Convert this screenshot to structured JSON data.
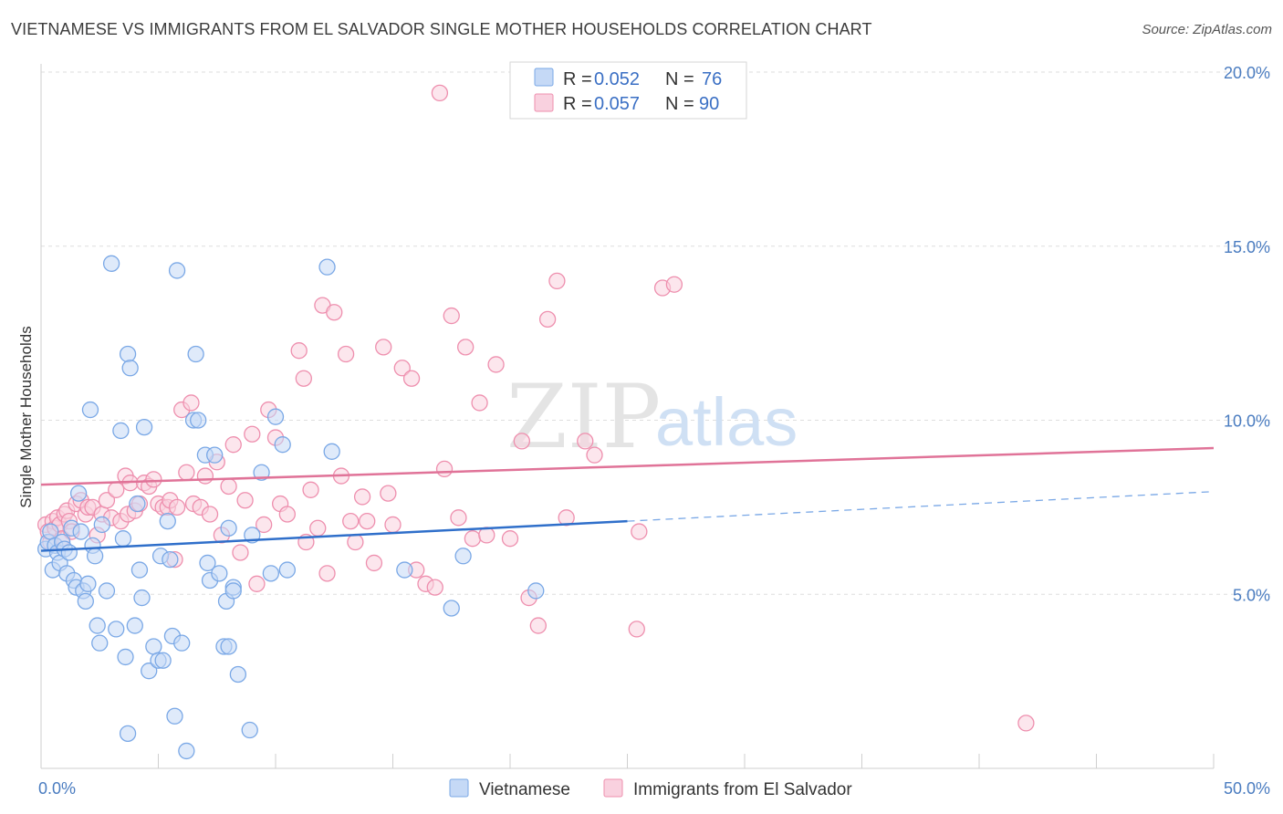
{
  "header": {
    "title": "VIETNAMESE VS IMMIGRANTS FROM EL SALVADOR SINGLE MOTHER HOUSEHOLDS CORRELATION CHART",
    "source": "Source: ZipAtlas.com"
  },
  "watermark": {
    "zip": "ZIP",
    "atlas": "atlas"
  },
  "chart_data": {
    "type": "scatter",
    "title": "VIETNAMESE VS IMMIGRANTS FROM EL SALVADOR SINGLE MOTHER HOUSEHOLDS CORRELATION CHART",
    "xlabel": "",
    "ylabel": "Single Mother Households",
    "xlim": [
      0,
      50
    ],
    "ylim": [
      0,
      20.5
    ],
    "x_tick_labels": [
      "0.0%",
      "50.0%"
    ],
    "y_ticks": [
      5,
      10,
      15,
      20
    ],
    "y_tick_labels": [
      "5.0%",
      "10.0%",
      "15.0%",
      "20.0%"
    ],
    "grid": true,
    "legend": [
      {
        "name": "Vietnamese",
        "r_label": "R =",
        "r": "0.052",
        "n_label": "N =",
        "n": "76",
        "color": "#7aa8e6",
        "fill": "#c5d9f6"
      },
      {
        "name": "Immigrants from El Salvador",
        "r_label": "R =",
        "r": "0.057",
        "n_label": "N =",
        "n": "90",
        "color": "#ee8fae",
        "fill": "#f9d1df"
      }
    ],
    "series": [
      {
        "name": "Vietnamese",
        "color": "#7aa8e6",
        "fill": "#c5d9f6",
        "trend": {
          "x": [
            0,
            25
          ],
          "y": [
            6.25,
            7.1
          ],
          "color": "#2f6fca",
          "dashed_to": {
            "x": 50,
            "y": 7.95
          }
        },
        "points": [
          [
            0.2,
            6.3
          ],
          [
            0.3,
            6.5
          ],
          [
            0.4,
            6.8
          ],
          [
            0.5,
            5.7
          ],
          [
            0.6,
            6.4
          ],
          [
            0.7,
            6.2
          ],
          [
            0.8,
            5.9
          ],
          [
            0.9,
            6.5
          ],
          [
            1.0,
            6.3
          ],
          [
            1.1,
            5.6
          ],
          [
            1.2,
            6.2
          ],
          [
            1.3,
            6.9
          ],
          [
            1.4,
            5.4
          ],
          [
            1.5,
            5.2
          ],
          [
            1.6,
            7.9
          ],
          [
            1.7,
            6.8
          ],
          [
            1.8,
            5.1
          ],
          [
            1.9,
            4.8
          ],
          [
            2.0,
            5.3
          ],
          [
            2.1,
            10.3
          ],
          [
            2.2,
            6.4
          ],
          [
            2.3,
            6.1
          ],
          [
            2.4,
            4.1
          ],
          [
            2.5,
            3.6
          ],
          [
            2.6,
            7.0
          ],
          [
            2.8,
            5.1
          ],
          [
            3.0,
            14.5
          ],
          [
            3.2,
            4.0
          ],
          [
            3.4,
            9.7
          ],
          [
            3.5,
            6.6
          ],
          [
            3.6,
            3.2
          ],
          [
            3.7,
            11.9
          ],
          [
            3.8,
            11.5
          ],
          [
            4.0,
            4.1
          ],
          [
            4.1,
            7.6
          ],
          [
            4.2,
            5.7
          ],
          [
            4.3,
            4.9
          ],
          [
            4.4,
            9.8
          ],
          [
            4.6,
            2.8
          ],
          [
            4.8,
            3.5
          ],
          [
            5.0,
            3.1
          ],
          [
            5.1,
            6.1
          ],
          [
            5.2,
            3.1
          ],
          [
            5.4,
            7.1
          ],
          [
            5.5,
            6.0
          ],
          [
            5.6,
            3.8
          ],
          [
            5.7,
            1.5
          ],
          [
            5.8,
            14.3
          ],
          [
            6.0,
            3.6
          ],
          [
            6.2,
            0.5
          ],
          [
            6.5,
            10.0
          ],
          [
            6.6,
            11.9
          ],
          [
            6.7,
            10.0
          ],
          [
            7.0,
            9.0
          ],
          [
            7.1,
            5.9
          ],
          [
            7.2,
            5.4
          ],
          [
            7.4,
            9.0
          ],
          [
            7.6,
            5.6
          ],
          [
            7.8,
            3.5
          ],
          [
            7.9,
            4.8
          ],
          [
            8.0,
            6.9
          ],
          [
            8.2,
            5.2
          ],
          [
            8.4,
            2.7
          ],
          [
            3.7,
            1.0
          ],
          [
            8.0,
            3.5
          ],
          [
            8.2,
            5.1
          ],
          [
            8.9,
            1.1
          ],
          [
            9.0,
            6.7
          ],
          [
            9.4,
            8.5
          ],
          [
            9.8,
            5.6
          ],
          [
            10.0,
            10.1
          ],
          [
            10.3,
            9.3
          ],
          [
            10.5,
            5.7
          ],
          [
            12.2,
            14.4
          ],
          [
            12.4,
            9.1
          ],
          [
            15.5,
            5.7
          ],
          [
            17.5,
            4.6
          ],
          [
            18.0,
            6.1
          ],
          [
            21.1,
            5.1
          ]
        ]
      },
      {
        "name": "Immigrants from El Salvador",
        "color": "#ee8fae",
        "fill": "#f9d1df",
        "trend": {
          "x": [
            0,
            50
          ],
          "y": [
            8.15,
            9.2
          ],
          "color": "#e07398"
        },
        "points": [
          [
            0.2,
            7.0
          ],
          [
            0.3,
            6.8
          ],
          [
            0.4,
            6.5
          ],
          [
            0.5,
            7.1
          ],
          [
            0.6,
            6.9
          ],
          [
            0.7,
            7.2
          ],
          [
            0.8,
            7.0
          ],
          [
            0.9,
            6.6
          ],
          [
            1.0,
            7.3
          ],
          [
            1.1,
            7.4
          ],
          [
            1.2,
            7.1
          ],
          [
            1.3,
            6.8
          ],
          [
            1.5,
            7.6
          ],
          [
            1.7,
            7.7
          ],
          [
            1.9,
            7.3
          ],
          [
            2.0,
            7.5
          ],
          [
            2.2,
            7.5
          ],
          [
            2.4,
            6.7
          ],
          [
            2.6,
            7.3
          ],
          [
            2.8,
            7.7
          ],
          [
            3.0,
            7.2
          ],
          [
            3.2,
            8.0
          ],
          [
            3.4,
            7.1
          ],
          [
            3.6,
            8.4
          ],
          [
            3.7,
            7.3
          ],
          [
            3.8,
            8.2
          ],
          [
            4.0,
            7.4
          ],
          [
            4.2,
            7.6
          ],
          [
            4.4,
            8.2
          ],
          [
            4.6,
            8.1
          ],
          [
            4.8,
            8.3
          ],
          [
            5.0,
            7.6
          ],
          [
            5.2,
            7.5
          ],
          [
            5.4,
            7.5
          ],
          [
            5.5,
            7.7
          ],
          [
            5.7,
            6.0
          ],
          [
            5.8,
            7.5
          ],
          [
            6.0,
            10.3
          ],
          [
            6.2,
            8.5
          ],
          [
            6.4,
            10.5
          ],
          [
            6.5,
            7.6
          ],
          [
            6.8,
            7.5
          ],
          [
            7.0,
            8.4
          ],
          [
            7.2,
            7.3
          ],
          [
            7.5,
            8.8
          ],
          [
            7.7,
            6.7
          ],
          [
            8.0,
            8.1
          ],
          [
            8.2,
            9.3
          ],
          [
            8.5,
            6.2
          ],
          [
            8.7,
            7.7
          ],
          [
            9.0,
            9.6
          ],
          [
            9.2,
            5.3
          ],
          [
            9.5,
            7.0
          ],
          [
            9.7,
            10.3
          ],
          [
            10.0,
            9.5
          ],
          [
            10.2,
            7.6
          ],
          [
            10.5,
            7.3
          ],
          [
            11.0,
            12.0
          ],
          [
            11.2,
            11.2
          ],
          [
            11.3,
            6.5
          ],
          [
            11.5,
            8.0
          ],
          [
            11.8,
            6.9
          ],
          [
            12.0,
            13.3
          ],
          [
            12.2,
            5.6
          ],
          [
            12.5,
            13.1
          ],
          [
            12.8,
            8.4
          ],
          [
            13.0,
            11.9
          ],
          [
            13.2,
            7.1
          ],
          [
            13.4,
            6.5
          ],
          [
            13.7,
            7.8
          ],
          [
            13.9,
            7.1
          ],
          [
            14.2,
            5.9
          ],
          [
            14.6,
            12.1
          ],
          [
            14.8,
            7.9
          ],
          [
            15.0,
            7.0
          ],
          [
            15.4,
            11.5
          ],
          [
            15.8,
            11.2
          ],
          [
            16.0,
            5.7
          ],
          [
            16.4,
            5.3
          ],
          [
            16.8,
            5.2
          ],
          [
            17.2,
            8.6
          ],
          [
            17.5,
            13.0
          ],
          [
            17.8,
            7.2
          ],
          [
            18.1,
            12.1
          ],
          [
            18.4,
            6.6
          ],
          [
            18.7,
            10.5
          ],
          [
            19.0,
            6.7
          ],
          [
            19.4,
            11.6
          ],
          [
            20.0,
            6.6
          ],
          [
            20.5,
            9.4
          ],
          [
            20.8,
            4.9
          ],
          [
            21.2,
            4.1
          ],
          [
            21.6,
            12.9
          ],
          [
            22.0,
            14.0
          ],
          [
            22.4,
            7.2
          ],
          [
            23.2,
            9.4
          ],
          [
            23.6,
            9.0
          ],
          [
            25.4,
            4.0
          ],
          [
            26.5,
            13.8
          ],
          [
            25.5,
            6.8
          ],
          [
            17.0,
            19.4
          ],
          [
            27.0,
            13.9
          ],
          [
            42.0,
            1.3
          ]
        ]
      }
    ]
  }
}
